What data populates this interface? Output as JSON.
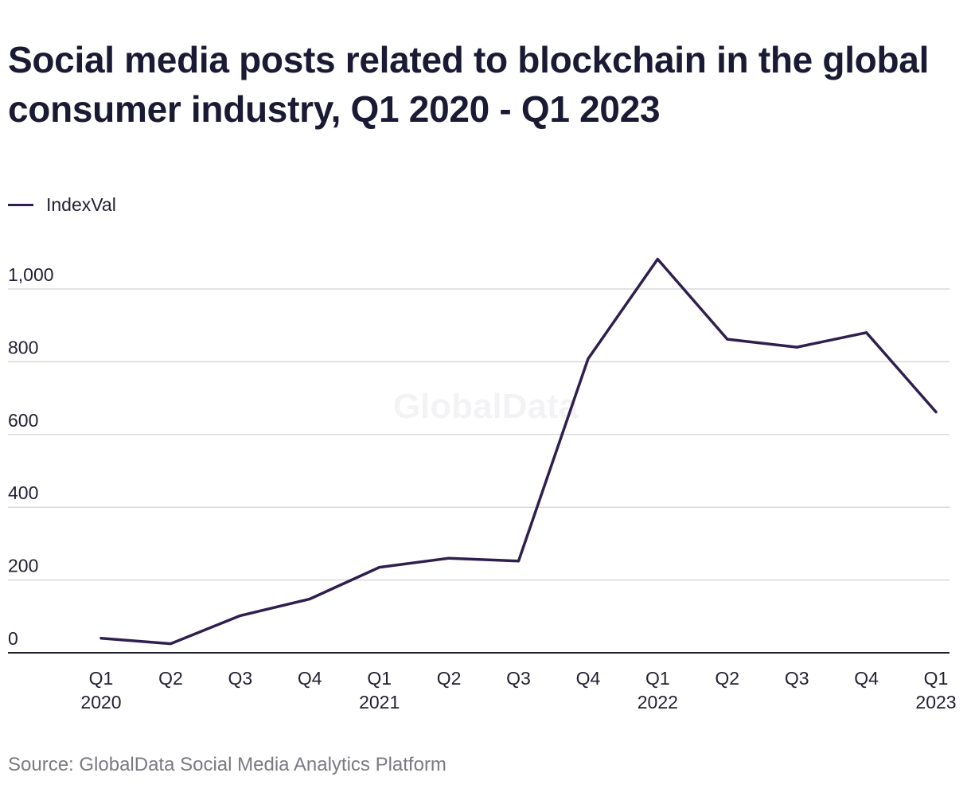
{
  "chart_data": {
    "type": "line",
    "title": "Social media posts related to blockchain in the global consumer industry, Q1 2020 - Q1 2023",
    "source": "Source: GlobalData Social Media Analytics Platform",
    "watermark": "GlobalData",
    "categories": [
      [
        "Q1",
        "2020"
      ],
      [
        "Q2",
        ""
      ],
      [
        "Q3",
        ""
      ],
      [
        "Q4",
        ""
      ],
      [
        "Q1",
        "2021"
      ],
      [
        "Q2",
        ""
      ],
      [
        "Q3",
        ""
      ],
      [
        "Q4",
        ""
      ],
      [
        "Q1",
        "2022"
      ],
      [
        "Q2",
        ""
      ],
      [
        "Q3",
        ""
      ],
      [
        "Q4",
        ""
      ],
      [
        "Q1",
        "2023"
      ]
    ],
    "series": [
      {
        "name": "IndexVal",
        "color": "#2e1f4f",
        "values": [
          40,
          25,
          102,
          148,
          235,
          260,
          252,
          808,
          1082,
          862,
          840,
          880,
          662
        ]
      }
    ],
    "yticks": [
      0,
      200,
      400,
      600,
      800,
      1000
    ],
    "ytick_labels": [
      "0",
      "200",
      "400",
      "600",
      "800",
      "1,000"
    ],
    "ylim": [
      0,
      1000
    ],
    "grid": true,
    "legend_position": "top-left"
  }
}
